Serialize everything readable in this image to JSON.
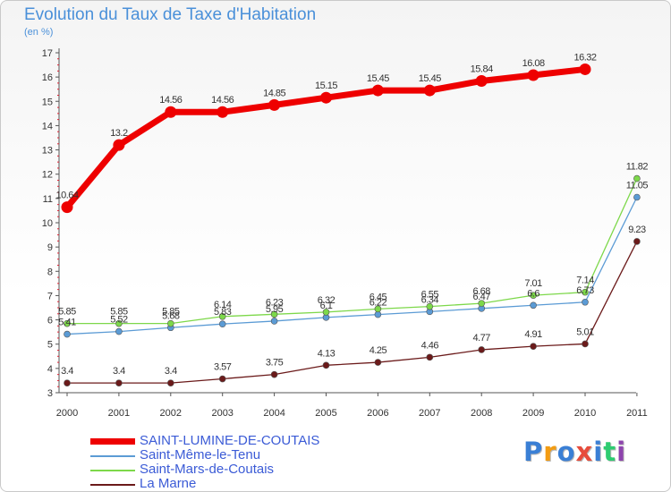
{
  "chart_data": {
    "type": "line",
    "title": "Evolution du Taux de Taxe d'Habitation",
    "subtitle": "(en %)",
    "x": [
      "2000",
      "2001",
      "2002",
      "2003",
      "2004",
      "2005",
      "2006",
      "2007",
      "2008",
      "2009",
      "2010",
      "2011"
    ],
    "ylim": [
      3,
      17
    ],
    "yticks": [
      "3",
      "4",
      "5",
      "6",
      "7",
      "8",
      "9",
      "10",
      "11",
      "12",
      "13",
      "14",
      "15",
      "16",
      "17"
    ],
    "grid": false,
    "legend_position": "bottom-left",
    "series": [
      {
        "name": "SAINT-LUMINE-DE-COUTAIS",
        "color": "#ee0000",
        "values": [
          10.64,
          13.2,
          14.56,
          14.56,
          14.85,
          15.15,
          15.45,
          15.45,
          15.84,
          16.08,
          16.32,
          null
        ],
        "labels": [
          "10.64",
          "13.2",
          "14.56",
          "14.56",
          "14.85",
          "15.15",
          "15.45",
          "15.45",
          "15.84",
          "16.08",
          "16.32",
          ""
        ]
      },
      {
        "name": "Saint-Même-le-Tenu",
        "color": "#5b9bd5",
        "values": [
          5.41,
          5.52,
          5.68,
          5.83,
          5.95,
          6.1,
          6.22,
          6.34,
          6.47,
          6.6,
          6.73,
          11.05
        ],
        "labels": [
          "5.41",
          "5.52",
          "5.68",
          "5.83",
          "5.95",
          "6.1",
          "6.22",
          "6.34",
          "6.47",
          "6.6",
          "6.73",
          "11.05"
        ]
      },
      {
        "name": "Saint-Mars-de-Coutais",
        "color": "#7dd84a",
        "values": [
          5.85,
          5.85,
          5.85,
          6.14,
          6.23,
          6.32,
          6.45,
          6.55,
          6.68,
          7.01,
          7.14,
          11.82
        ],
        "labels": [
          "5.85",
          "5.85",
          "5.85",
          "6.14",
          "6.23",
          "6.32",
          "6.45",
          "6.55",
          "6.68",
          "7.01",
          "7.14",
          "11.82"
        ]
      },
      {
        "name": "La Marne",
        "color": "#6b1a1a",
        "values": [
          3.4,
          3.4,
          3.4,
          3.57,
          3.75,
          4.13,
          4.25,
          4.46,
          4.77,
          4.91,
          5.01,
          9.23
        ],
        "labels": [
          "3.4",
          "3.4",
          "3.4",
          "3.57",
          "3.75",
          "4.13",
          "4.25",
          "4.46",
          "4.77",
          "4.91",
          "5.01",
          "9.23"
        ]
      }
    ]
  },
  "logo": {
    "letters": [
      "P",
      "r",
      "o",
      "x",
      "i",
      "t",
      "i"
    ],
    "colors": [
      "#3a7fd5",
      "#f39c12",
      "#3a7fd5",
      "#e74c3c",
      "#3a7fd5",
      "#2ecc71",
      "#8e44ad"
    ]
  }
}
